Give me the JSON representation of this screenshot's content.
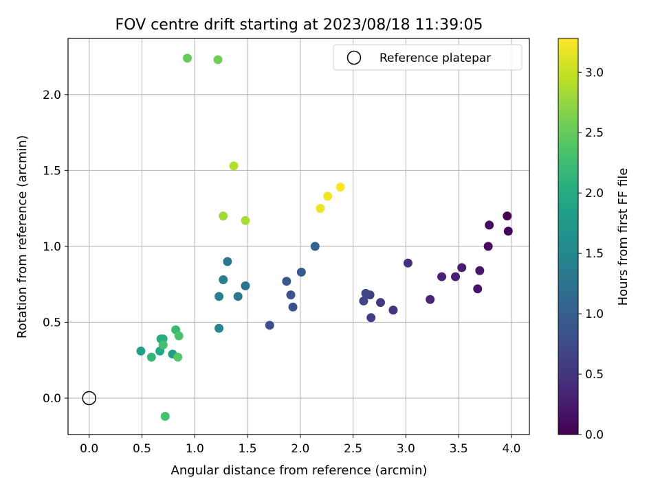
{
  "chart_data": {
    "type": "scatter",
    "title": "FOV centre drift starting at 2023/08/18 11:39:05",
    "xlabel": "Angular distance from reference (arcmin)",
    "ylabel": "Rotation from reference (arcmin)",
    "xlim": [
      -0.2,
      4.17
    ],
    "ylim": [
      -0.24,
      2.37
    ],
    "xticks": [
      "0.0",
      "0.5",
      "1.0",
      "1.5",
      "2.0",
      "2.5",
      "3.0",
      "3.5",
      "4.0"
    ],
    "yticks": [
      "0.0",
      "0.5",
      "1.0",
      "1.5",
      "2.0"
    ],
    "grid": true,
    "legend": {
      "position": "top-right",
      "label": "Reference platepar"
    },
    "reference_point": {
      "x": 0.0,
      "y": 0.0
    },
    "colorbar": {
      "label": "Hours from first FF file",
      "range": [
        0,
        3.28
      ],
      "colormap": "viridis",
      "ticks": [
        "0.0",
        "0.5",
        "1.0",
        "1.5",
        "2.0",
        "2.5",
        "3.0"
      ]
    },
    "points": [
      {
        "x": 3.96,
        "y": 1.2,
        "c": 0.0
      },
      {
        "x": 3.97,
        "y": 1.1,
        "c": 0.04
      },
      {
        "x": 3.79,
        "y": 1.14,
        "c": 0.09
      },
      {
        "x": 3.78,
        "y": 1.0,
        "c": 0.12
      },
      {
        "x": 3.68,
        "y": 0.72,
        "c": 0.18
      },
      {
        "x": 3.7,
        "y": 0.84,
        "c": 0.22
      },
      {
        "x": 3.53,
        "y": 0.86,
        "c": 0.27
      },
      {
        "x": 3.47,
        "y": 0.8,
        "c": 0.3
      },
      {
        "x": 3.34,
        "y": 0.8,
        "c": 0.3
      },
      {
        "x": 3.23,
        "y": 0.65,
        "c": 0.34
      },
      {
        "x": 3.02,
        "y": 0.89,
        "c": 0.45
      },
      {
        "x": 2.88,
        "y": 0.58,
        "c": 0.5
      },
      {
        "x": 2.76,
        "y": 0.63,
        "c": 0.55
      },
      {
        "x": 2.67,
        "y": 0.53,
        "c": 0.6
      },
      {
        "x": 2.66,
        "y": 0.68,
        "c": 0.62
      },
      {
        "x": 2.6,
        "y": 0.64,
        "c": 0.67
      },
      {
        "x": 2.62,
        "y": 0.69,
        "c": 0.7
      },
      {
        "x": 1.71,
        "y": 0.48,
        "c": 0.78
      },
      {
        "x": 1.93,
        "y": 0.6,
        "c": 0.8
      },
      {
        "x": 1.91,
        "y": 0.68,
        "c": 0.85
      },
      {
        "x": 1.87,
        "y": 0.77,
        "c": 0.9
      },
      {
        "x": 2.01,
        "y": 0.83,
        "c": 0.92
      },
      {
        "x": 2.14,
        "y": 1.0,
        "c": 1.05
      },
      {
        "x": 1.48,
        "y": 0.74,
        "c": 1.25
      },
      {
        "x": 1.41,
        "y": 0.67,
        "c": 1.3
      },
      {
        "x": 1.31,
        "y": 0.9,
        "c": 1.3
      },
      {
        "x": 1.27,
        "y": 0.78,
        "c": 1.38
      },
      {
        "x": 1.23,
        "y": 0.67,
        "c": 1.45
      },
      {
        "x": 1.23,
        "y": 0.46,
        "c": 1.5
      },
      {
        "x": 0.49,
        "y": 0.31,
        "c": 1.85
      },
      {
        "x": 0.79,
        "y": 0.29,
        "c": 1.8
      },
      {
        "x": 0.67,
        "y": 0.31,
        "c": 1.95
      },
      {
        "x": 0.68,
        "y": 0.39,
        "c": 2.05
      },
      {
        "x": 0.7,
        "y": 0.39,
        "c": 2.05
      },
      {
        "x": 0.59,
        "y": 0.27,
        "c": 2.15
      },
      {
        "x": 0.82,
        "y": 0.45,
        "c": 2.2
      },
      {
        "x": 0.7,
        "y": 0.35,
        "c": 2.3
      },
      {
        "x": 0.72,
        "y": -0.12,
        "c": 2.3
      },
      {
        "x": 0.85,
        "y": 0.41,
        "c": 2.35
      },
      {
        "x": 0.84,
        "y": 0.27,
        "c": 2.4
      },
      {
        "x": 0.93,
        "y": 2.24,
        "c": 2.5
      },
      {
        "x": 1.22,
        "y": 2.23,
        "c": 2.55
      },
      {
        "x": 1.27,
        "y": 1.2,
        "c": 2.8
      },
      {
        "x": 1.48,
        "y": 1.17,
        "c": 2.85
      },
      {
        "x": 1.37,
        "y": 1.53,
        "c": 2.9
      },
      {
        "x": 2.19,
        "y": 1.25,
        "c": 3.18
      },
      {
        "x": 2.26,
        "y": 1.33,
        "c": 3.22
      },
      {
        "x": 2.38,
        "y": 1.39,
        "c": 3.26
      }
    ]
  }
}
